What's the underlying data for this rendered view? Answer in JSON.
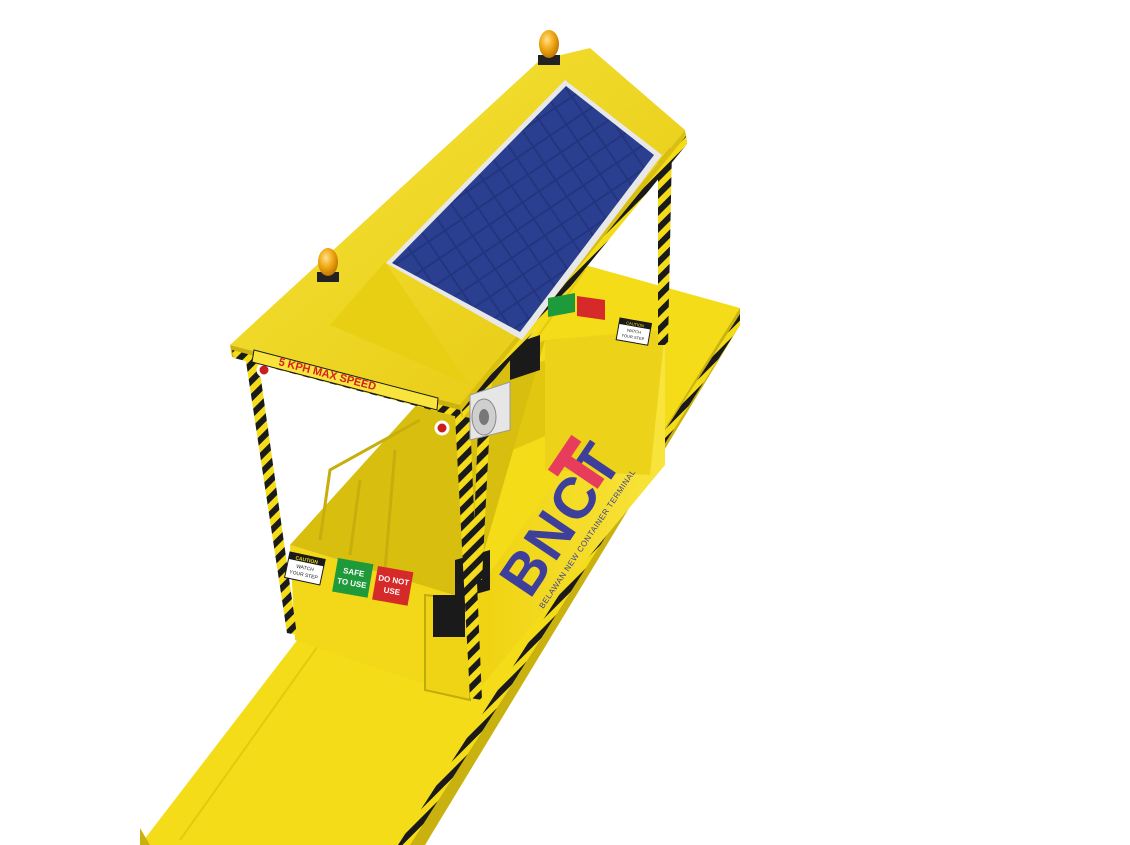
{
  "speed_sign": "5 KPH MAX SPEED",
  "caution_sign": {
    "title": "CAUTION",
    "line1": "WATCH",
    "line2": "YOUR STEP"
  },
  "safe_sign": {
    "line1": "SAFE",
    "line2": "TO USE",
    "color": "#1f9a3a"
  },
  "unsafe_sign": {
    "line1": "DO NOT",
    "line2": "USE",
    "color": "#d62a2a"
  },
  "far_sign": {
    "title": "CAUTION",
    "line1": "WATCH",
    "line2": "YOUR STEP"
  },
  "logo": {
    "text": "BNCT",
    "subtitle": "BELAWAN NEW CONTAINER TERMINAL",
    "blue": "#3d3f9a",
    "red": "#e83c5c"
  },
  "colors": {
    "body_yellow": "#f4dc18",
    "shade_yellow": "#c9b210",
    "hazard_black": "#1a1a1a",
    "solar_blue": "#1f2f78",
    "beacon_amber": "#e8a10a"
  }
}
